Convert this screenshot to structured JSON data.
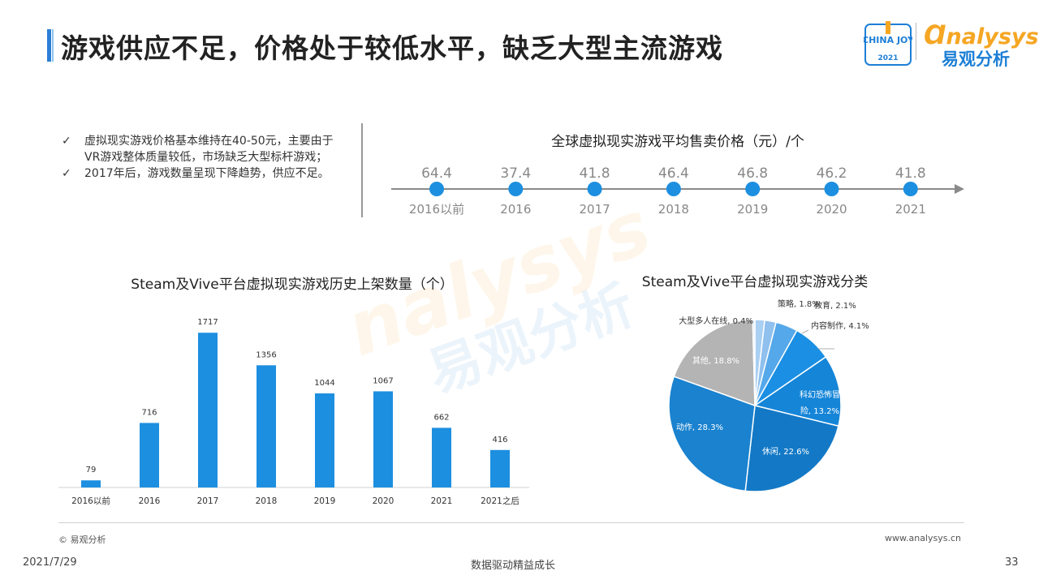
{
  "page": {
    "title": "游戏供应不足，价格处于较低水平，缺乏大型主流游戏",
    "logo_china_joy": "CHINA JOY",
    "logo_year": "2021",
    "logo_brand": "nalysys",
    "logo_cn": "易观分析",
    "watermark_en": "nalysys",
    "watermark_cn": "易观分析",
    "source": "© 易观分析",
    "url": "www.analysys.cn",
    "date": "2021/7/29",
    "slogan": "数据驱动精益成长",
    "page_number": "33",
    "accent_color": "#1d8fe0"
  },
  "bullets": [
    {
      "icon": "check-icon",
      "mark": "✓",
      "text": "虚拟现实游戏价格基本维持在40-50元，主要由于VR游戏整体质量较低，市场缺乏大型标杆游戏；"
    },
    {
      "icon": "check-icon",
      "mark": "✓",
      "text": "2017年后，游戏数量呈现下降趋势，供应不足。"
    }
  ],
  "chart_data": [
    {
      "type": "line",
      "title": "全球虚拟现实游戏平均售卖价格（元）/个",
      "categories": [
        "2016以前",
        "2016",
        "2017",
        "2018",
        "2019",
        "2020",
        "2021"
      ],
      "values": [
        64.4,
        37.4,
        41.8,
        46.4,
        46.8,
        46.2,
        41.8
      ],
      "value_labels": [
        "64.4",
        "37.4",
        "41.8",
        "46.4",
        "46.8",
        "46.2",
        "41.8"
      ],
      "colors": {
        "dot": "#1d8fe0",
        "axis": "#8a8a8a",
        "value": "#888888",
        "category": "#888888"
      }
    },
    {
      "type": "bar",
      "title": "Steam及Vive平台虚拟现实游戏历史上架数量（个）",
      "categories": [
        "2016以前",
        "2016",
        "2017",
        "2018",
        "2019",
        "2020",
        "2021",
        "2021之后"
      ],
      "values": [
        79,
        716,
        1717,
        1356,
        1044,
        1067,
        662,
        416
      ],
      "value_labels": [
        "79",
        "716",
        "1717",
        "1356",
        "1044",
        "1067",
        "662",
        "416"
      ],
      "ylim": [
        0,
        1800
      ],
      "colors": {
        "bar": "#1d8fe0"
      }
    },
    {
      "type": "pie",
      "title": "Steam及Vive平台虚拟现实游戏分类",
      "slices": [
        {
          "label": "策略, 1.8%",
          "value": 1.8,
          "color": "#a9cff2"
        },
        {
          "label": "教育, 2.1%",
          "value": 2.1,
          "color": "#8fc0ee"
        },
        {
          "label": "内容制作, 4.1%",
          "value": 4.1,
          "color": "#55a8ea"
        },
        {
          "label": "",
          "value": 7.2,
          "color": "#1a8fe3"
        },
        {
          "label": "科幻恐怖冒险, 13.2%",
          "value": 13.2,
          "color": "#1585d8"
        },
        {
          "label": "休闲, 22.6%",
          "value": 22.6,
          "color": "#1379c6"
        },
        {
          "label": "动作, 28.3%",
          "value": 28.3,
          "color": "#1a82cf"
        },
        {
          "label": "其他, 18.8%",
          "value": 18.8,
          "color": "#b4b4b4"
        },
        {
          "label": "大型多人在线, 0.4%",
          "value": 0.4,
          "color": "#d6e7f7"
        }
      ]
    }
  ]
}
